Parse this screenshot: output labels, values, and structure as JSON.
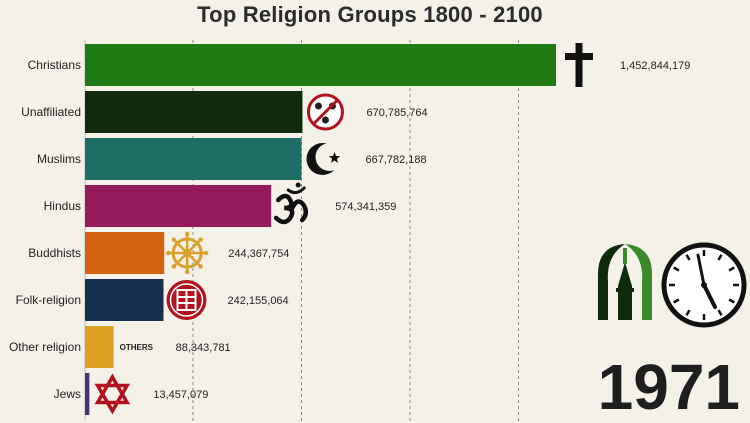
{
  "title": "Top Religion Groups 1800 - 2100",
  "year": "1971",
  "others_tag": "OTHERS",
  "chart_data": {
    "type": "bar",
    "orientation": "horizontal",
    "title": "Top Religion Groups 1800 - 2100",
    "categories": [
      "Christians",
      "Unaffiliated",
      "Muslims",
      "Hindus",
      "Buddhists",
      "Folk-religion",
      "Other religion",
      "Jews"
    ],
    "values": [
      1452844179,
      670785764,
      667782188,
      574341359,
      244367754,
      242155064,
      88343781,
      13457079
    ],
    "value_labels": [
      "1,452,844,179",
      "670,785,764",
      "667,782,188",
      "574,341,359",
      "244,367,754",
      "242,155,064",
      "88,343,781",
      "13,457,079"
    ],
    "colors": [
      "#1f7a13",
      "#0f2a0c",
      "#1f6e66",
      "#951a5b",
      "#d4620e",
      "#13304f",
      "#dca021",
      "#4a2f74"
    ],
    "icons": [
      "cross-icon",
      "unaffiliated-icon",
      "crescent-star-icon",
      "om-icon",
      "dharma-wheel-icon",
      "folk-symbol-icon",
      "others-tag",
      "star-of-david-icon"
    ],
    "xlim": [
      0,
      1452844179
    ],
    "grid": true,
    "legend": "none"
  },
  "colors": {
    "background": "#f4f1e8",
    "grid": "#8a8a8a",
    "text": "#222222",
    "icon_red": "#b1121e",
    "icon_gold": "#d9a12a",
    "logo_green": "#3a8a29",
    "logo_dark": "#0f2a0c"
  }
}
